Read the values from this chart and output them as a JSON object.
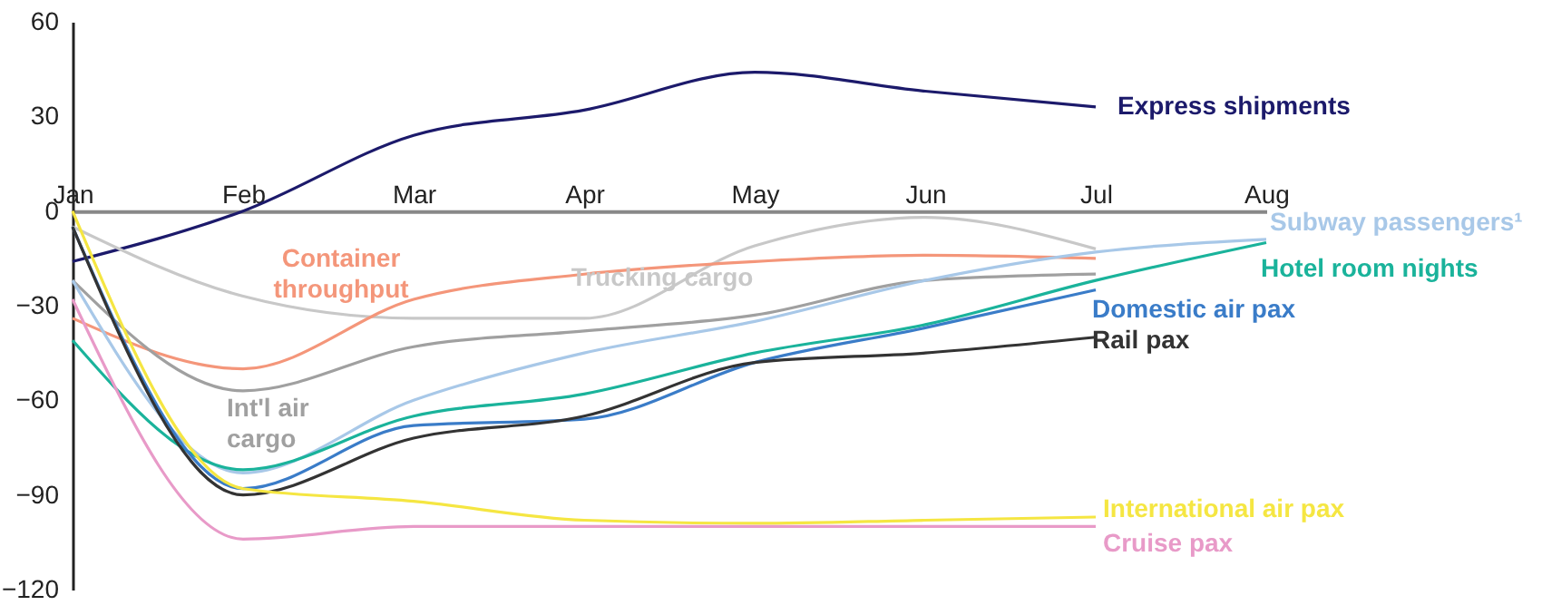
{
  "chart_data": {
    "type": "line",
    "categories": [
      "Jan",
      "Feb",
      "Mar",
      "Apr",
      "May",
      "Jun",
      "Jul",
      "Aug"
    ],
    "ylim": [
      -120,
      60
    ],
    "yticks": [
      -120,
      -90,
      -60,
      -30,
      0,
      30,
      60
    ],
    "grid": false,
    "marker": "none",
    "line_style": "solid",
    "series": [
      {
        "name": "Express shipments",
        "color": "#1c1a6b",
        "values": [
          -16,
          0,
          24,
          32,
          44,
          38,
          33,
          null
        ]
      },
      {
        "name": "Trucking cargo",
        "color": "#c8c8c8",
        "values": [
          -5,
          -27,
          -34,
          -34,
          -11,
          -2,
          -12,
          null
        ]
      },
      {
        "name": "Container throughput",
        "color": "#f4967a",
        "values": [
          -34,
          -50,
          -28,
          -20,
          -16,
          -14,
          -15,
          null
        ]
      },
      {
        "name": "Int'l air cargo",
        "color": "#a0a0a0",
        "values": [
          -22,
          -57,
          -43,
          -38,
          -33,
          -22,
          -20,
          null
        ]
      },
      {
        "name": "Subway passengers¹",
        "color": "#a8c8e8",
        "values": [
          -22,
          -83,
          -60,
          -45,
          -35,
          -22,
          -13,
          -9
        ]
      },
      {
        "name": "Hotel room nights",
        "color": "#1ab39b",
        "values": [
          -41,
          -82,
          -65,
          -58,
          -45,
          -36,
          -22,
          -10
        ]
      },
      {
        "name": "Domestic air pax",
        "color": "#3a7cc8",
        "values": [
          -5,
          -88,
          -68,
          -66,
          -48,
          -37,
          -25,
          null
        ]
      },
      {
        "name": "Rail pax",
        "color": "#333333",
        "values": [
          -5,
          -90,
          -72,
          -65,
          -48,
          -45,
          -40,
          null
        ]
      },
      {
        "name": "International air pax",
        "color": "#f5e642",
        "values": [
          0,
          -88,
          -92,
          -98,
          -99,
          -98,
          -97,
          null
        ]
      },
      {
        "name": "Cruise pax",
        "color": "#e89ac8",
        "values": [
          -28,
          -104,
          -100,
          -100,
          -100,
          -100,
          -100,
          null
        ]
      }
    ]
  }
}
